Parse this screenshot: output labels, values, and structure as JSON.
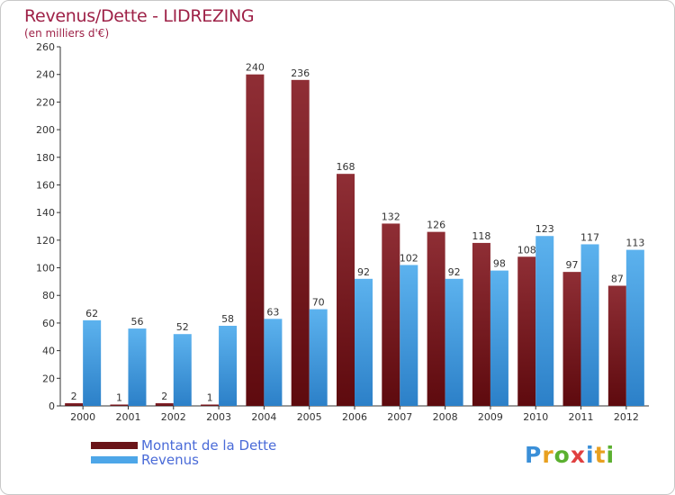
{
  "header": {
    "title": "Revenus/Dette - LIDREZING",
    "subtitle": "(en milliers d'€)"
  },
  "legend": {
    "items": [
      {
        "label": "Montant de la Dette",
        "color": "#7a1a1c"
      },
      {
        "label": "Revenus",
        "color": "#4da6e8"
      }
    ]
  },
  "logo": {
    "text": "Proxiti"
  },
  "colors": {
    "debt_dark": "#5e0a0e",
    "debt_light": "#8f2e35",
    "revenue_dark": "#2c80c8",
    "revenue_light": "#5cb2ee",
    "title": "#9e2147",
    "legend_text": "#4a6bd8"
  },
  "chart_data": {
    "type": "bar",
    "title": "Revenus/Dette - LIDREZING",
    "ylabel": "(en milliers d'€)",
    "categories": [
      "2000",
      "2001",
      "2002",
      "2003",
      "2004",
      "2005",
      "2006",
      "2007",
      "2008",
      "2009",
      "2010",
      "2011",
      "2012"
    ],
    "series": [
      {
        "name": "Montant de la Dette",
        "values": [
          2,
          1,
          2,
          1,
          240,
          236,
          168,
          132,
          126,
          118,
          108,
          97,
          87
        ]
      },
      {
        "name": "Revenus",
        "values": [
          62,
          56,
          52,
          58,
          63,
          70,
          92,
          102,
          92,
          98,
          123,
          117,
          113
        ]
      }
    ],
    "ylim": [
      0,
      260
    ],
    "yticks": [
      0,
      20,
      40,
      60,
      80,
      100,
      120,
      140,
      160,
      180,
      200,
      220,
      240,
      260
    ],
    "grid": false,
    "legend_position": "bottom-left"
  }
}
